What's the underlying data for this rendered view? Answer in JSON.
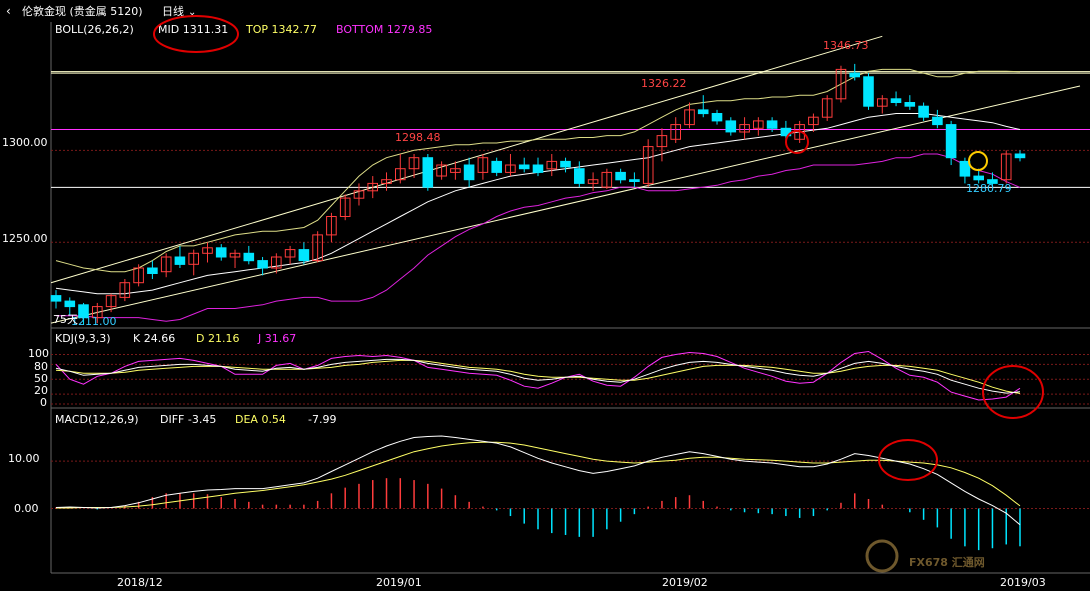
{
  "header": {
    "title": "伦敦金现 (贵金属 5120)",
    "period": "日线"
  },
  "boll": {
    "label": "BOLL(26,26,2)",
    "mid": "MID 1311.31",
    "top": "TOP 1342.77",
    "bottom": "BOTTOM 1279.85"
  },
  "kdj": {
    "label": "KDJ(9,3,3)",
    "k": "K 24.66",
    "d": "D 21.16",
    "j": "J 31.67"
  },
  "macd": {
    "label": "MACD(12,26,9)",
    "diff": "DIFF -3.45",
    "dea": "DEA 0.54",
    "macd": "-7.99"
  },
  "price_axis": [
    "1300.00",
    "1250.00"
  ],
  "kdj_axis": [
    "100",
    "80",
    "50",
    "20",
    "0"
  ],
  "macd_axis": [
    "10.00",
    "0.00"
  ],
  "date_axis": [
    "2018/12",
    "2019/01",
    "2019/02",
    "2019/03"
  ],
  "annotations": {
    "hi1": "1298.48",
    "hi2": "1326.22",
    "hi3": "1346.73",
    "lo1": "1280.79",
    "lo_start": "1211.00",
    "vol_tag": "75天"
  },
  "watermark": "FX678 汇通网",
  "colors": {
    "up": "#ff3c3c",
    "down": "#00e5ff",
    "mid": "#ffff99",
    "top": "#ffffcc",
    "bottom": "#ff33ff",
    "annotation": "#ff3333"
  },
  "chart_data": {
    "type": "candlestick",
    "price_ylim": [
      1205,
      1360
    ],
    "candles": [
      [
        1221,
        1224,
        1214,
        1218
      ],
      [
        1218,
        1220,
        1210,
        1215
      ],
      [
        1216,
        1217,
        1205,
        1209
      ],
      [
        1209,
        1217,
        1206,
        1215
      ],
      [
        1215,
        1222,
        1212,
        1221
      ],
      [
        1220,
        1230,
        1218,
        1228
      ],
      [
        1228,
        1238,
        1226,
        1236
      ],
      [
        1236,
        1240,
        1230,
        1233
      ],
      [
        1234,
        1244,
        1231,
        1242
      ],
      [
        1242,
        1248,
        1236,
        1238
      ],
      [
        1238,
        1246,
        1232,
        1244
      ],
      [
        1244,
        1250,
        1239,
        1247
      ],
      [
        1247,
        1249,
        1240,
        1242
      ],
      [
        1242,
        1246,
        1236,
        1244
      ],
      [
        1244,
        1248,
        1238,
        1240
      ],
      [
        1240,
        1242,
        1232,
        1236
      ],
      [
        1236,
        1244,
        1233,
        1242
      ],
      [
        1242,
        1248,
        1238,
        1246
      ],
      [
        1246,
        1250,
        1238,
        1240
      ],
      [
        1240,
        1256,
        1239,
        1254
      ],
      [
        1254,
        1266,
        1250,
        1264
      ],
      [
        1264,
        1276,
        1262,
        1274
      ],
      [
        1274,
        1282,
        1270,
        1278
      ],
      [
        1278,
        1286,
        1274,
        1282
      ],
      [
        1282,
        1288,
        1278,
        1284
      ],
      [
        1284,
        1298,
        1282,
        1290
      ],
      [
        1290,
        1298,
        1285,
        1296
      ],
      [
        1296,
        1298,
        1278,
        1280
      ],
      [
        1286,
        1294,
        1284,
        1292
      ],
      [
        1288,
        1294,
        1284,
        1290
      ],
      [
        1292,
        1296,
        1280,
        1284
      ],
      [
        1288,
        1298,
        1284,
        1296
      ],
      [
        1294,
        1296,
        1286,
        1288
      ],
      [
        1288,
        1298,
        1286,
        1292
      ],
      [
        1292,
        1296,
        1288,
        1290
      ],
      [
        1292,
        1296,
        1286,
        1288
      ],
      [
        1290,
        1298,
        1286,
        1294
      ],
      [
        1294,
        1296,
        1288,
        1291
      ],
      [
        1290,
        1294,
        1280,
        1282
      ],
      [
        1282,
        1288,
        1278,
        1284
      ],
      [
        1280,
        1290,
        1279,
        1288
      ],
      [
        1288,
        1290,
        1282,
        1284
      ],
      [
        1284,
        1288,
        1280,
        1283
      ],
      [
        1282,
        1306,
        1280,
        1302
      ],
      [
        1302,
        1312,
        1294,
        1308
      ],
      [
        1306,
        1318,
        1304,
        1314
      ],
      [
        1314,
        1326,
        1312,
        1322
      ],
      [
        1322,
        1330,
        1318,
        1320
      ],
      [
        1320,
        1322,
        1314,
        1316
      ],
      [
        1316,
        1318,
        1308,
        1310
      ],
      [
        1310,
        1318,
        1306,
        1314
      ],
      [
        1312,
        1318,
        1308,
        1316
      ],
      [
        1316,
        1318,
        1310,
        1312
      ],
      [
        1312,
        1316,
        1304,
        1308
      ],
      [
        1306,
        1316,
        1304,
        1314
      ],
      [
        1314,
        1320,
        1310,
        1318
      ],
      [
        1318,
        1330,
        1316,
        1328
      ],
      [
        1328,
        1346,
        1326,
        1344
      ],
      [
        1342,
        1347,
        1338,
        1340
      ],
      [
        1340,
        1342,
        1322,
        1324
      ],
      [
        1324,
        1330,
        1320,
        1328
      ],
      [
        1328,
        1332,
        1324,
        1326
      ],
      [
        1326,
        1330,
        1322,
        1324
      ],
      [
        1324,
        1326,
        1316,
        1318
      ],
      [
        1318,
        1322,
        1312,
        1314
      ],
      [
        1314,
        1316,
        1292,
        1296
      ],
      [
        1294,
        1296,
        1282,
        1286
      ],
      [
        1286,
        1290,
        1282,
        1284
      ],
      [
        1284,
        1288,
        1280,
        1282
      ],
      [
        1284,
        1300,
        1282,
        1298
      ],
      [
        1298,
        1300,
        1294,
        1296
      ]
    ],
    "boll_mid": [
      1225,
      1224,
      1223,
      1222,
      1222,
      1222,
      1223,
      1224,
      1226,
      1228,
      1230,
      1232,
      1233,
      1234,
      1235,
      1236,
      1237,
      1238,
      1239,
      1241,
      1244,
      1248,
      1252,
      1256,
      1260,
      1264,
      1268,
      1272,
      1275,
      1278,
      1280,
      1282,
      1284,
      1286,
      1287,
      1288,
      1289,
      1290,
      1291,
      1292,
      1293,
      1294,
      1295,
      1296,
      1298,
      1300,
      1302,
      1303,
      1304,
      1305,
      1306,
      1307,
      1308,
      1309,
      1310,
      1311,
      1312,
      1314,
      1316,
      1318,
      1319,
      1320,
      1320,
      1320,
      1319,
      1318,
      1317,
      1316,
      1315,
      1313,
      1311.31
    ],
    "boll_top": [
      1240,
      1238,
      1236,
      1235,
      1234,
      1234,
      1236,
      1240,
      1245,
      1248,
      1248,
      1250,
      1252,
      1254,
      1255,
      1256,
      1256,
      1257,
      1258,
      1262,
      1270,
      1278,
      1286,
      1292,
      1296,
      1298,
      1300,
      1301,
      1302,
      1303,
      1303,
      1304,
      1304,
      1305,
      1305,
      1306,
      1306,
      1306,
      1307,
      1307,
      1308,
      1308,
      1310,
      1314,
      1318,
      1322,
      1325,
      1326,
      1327,
      1327,
      1328,
      1328,
      1329,
      1329,
      1330,
      1330,
      1332,
      1336,
      1340,
      1343,
      1344,
      1344,
      1344,
      1342,
      1340,
      1340,
      1342,
      1343,
      1343,
      1343,
      1342.77
    ],
    "boll_bottom": [
      1210,
      1210,
      1210,
      1209,
      1209,
      1209,
      1209,
      1208,
      1207,
      1208,
      1211,
      1214,
      1214,
      1214,
      1215,
      1216,
      1218,
      1219,
      1220,
      1220,
      1218,
      1218,
      1218,
      1220,
      1224,
      1230,
      1236,
      1243,
      1248,
      1253,
      1257,
      1260,
      1264,
      1267,
      1269,
      1270,
      1272,
      1274,
      1275,
      1277,
      1278,
      1280,
      1280,
      1278,
      1278,
      1278,
      1279,
      1280,
      1281,
      1283,
      1284,
      1286,
      1287,
      1289,
      1290,
      1292,
      1292,
      1292,
      1292,
      1293,
      1294,
      1296,
      1296,
      1298,
      1298,
      1296,
      1292,
      1289,
      1287,
      1283,
      1279.85
    ],
    "kdj_k": [
      72,
      66,
      58,
      60,
      62,
      68,
      74,
      76,
      78,
      80,
      80,
      78,
      76,
      70,
      68,
      66,
      72,
      74,
      70,
      74,
      80,
      84,
      86,
      88,
      90,
      90,
      88,
      82,
      78,
      74,
      70,
      68,
      66,
      60,
      52,
      48,
      50,
      54,
      56,
      50,
      46,
      44,
      50,
      60,
      70,
      78,
      84,
      86,
      84,
      80,
      76,
      72,
      68,
      62,
      58,
      56,
      62,
      72,
      82,
      86,
      82,
      76,
      70,
      66,
      60,
      48,
      40,
      32,
      26,
      22,
      24.66
    ],
    "kdj_d": [
      68,
      66,
      62,
      62,
      62,
      64,
      68,
      70,
      72,
      74,
      76,
      76,
      76,
      74,
      72,
      70,
      70,
      70,
      70,
      72,
      74,
      78,
      80,
      84,
      86,
      88,
      88,
      86,
      82,
      78,
      74,
      72,
      70,
      66,
      60,
      56,
      54,
      54,
      54,
      52,
      50,
      48,
      48,
      52,
      58,
      64,
      70,
      76,
      78,
      78,
      78,
      76,
      74,
      70,
      66,
      62,
      62,
      66,
      72,
      76,
      78,
      78,
      76,
      72,
      68,
      60,
      52,
      44,
      34,
      26,
      21.16
    ],
    "kdj_j": [
      80,
      50,
      40,
      56,
      62,
      76,
      86,
      88,
      90,
      92,
      88,
      82,
      76,
      60,
      60,
      60,
      78,
      82,
      70,
      78,
      92,
      96,
      98,
      96,
      98,
      94,
      88,
      74,
      70,
      66,
      62,
      60,
      58,
      48,
      36,
      32,
      42,
      54,
      60,
      46,
      38,
      36,
      54,
      76,
      94,
      100,
      104,
      102,
      96,
      84,
      72,
      64,
      56,
      46,
      42,
      44,
      62,
      84,
      102,
      106,
      90,
      72,
      58,
      54,
      44,
      24,
      16,
      8,
      10,
      14,
      31.67
    ],
    "macd_diff": [
      0.2,
      0.3,
      0.2,
      0.1,
      0.2,
      0.6,
      1.2,
      2.0,
      2.8,
      3.2,
      3.6,
      3.9,
      4.0,
      4.2,
      4.2,
      4.2,
      4.6,
      5.0,
      5.4,
      6.4,
      7.8,
      9.2,
      10.6,
      12.0,
      13.2,
      14.2,
      15.0,
      15.2,
      15.3,
      15.0,
      14.6,
      14.2,
      13.8,
      13.0,
      11.8,
      10.6,
      9.6,
      8.8,
      8.0,
      7.4,
      7.8,
      8.4,
      9.0,
      10.0,
      10.8,
      11.4,
      12.0,
      11.6,
      11.0,
      10.4,
      10.0,
      9.8,
      9.6,
      9.2,
      8.8,
      8.8,
      9.4,
      10.4,
      11.6,
      11.2,
      10.6,
      10.0,
      9.4,
      8.4,
      7.2,
      5.4,
      3.6,
      2.0,
      0.6,
      -1.0,
      -3.45
    ],
    "macd_dea": [
      0.1,
      0.1,
      0.2,
      0.2,
      0.2,
      0.3,
      0.5,
      0.8,
      1.2,
      1.6,
      2.0,
      2.4,
      2.8,
      3.2,
      3.5,
      3.8,
      4.2,
      4.6,
      5.0,
      5.6,
      6.2,
      7.0,
      8.0,
      9.0,
      10.0,
      11.0,
      12.0,
      12.6,
      13.2,
      13.6,
      13.9,
      14.0,
      14.0,
      13.8,
      13.4,
      12.8,
      12.2,
      11.6,
      11.0,
      10.4,
      10.0,
      9.8,
      9.6,
      9.8,
      10.0,
      10.2,
      10.6,
      10.8,
      10.8,
      10.6,
      10.4,
      10.3,
      10.2,
      10.0,
      9.8,
      9.6,
      9.6,
      9.8,
      10.0,
      10.2,
      10.2,
      10.0,
      9.8,
      9.6,
      9.2,
      8.6,
      7.6,
      6.4,
      4.8,
      2.8,
      0.54
    ],
    "macd_hist": [
      0.2,
      0.4,
      0.0,
      -0.2,
      0.0,
      0.6,
      1.4,
      2.4,
      3.2,
      3.2,
      3.2,
      3.0,
      2.4,
      2.0,
      1.4,
      0.8,
      0.8,
      0.8,
      0.8,
      1.6,
      3.2,
      4.4,
      5.2,
      6.0,
      6.4,
      6.4,
      6.0,
      5.2,
      4.2,
      2.8,
      1.4,
      0.4,
      -0.4,
      -1.6,
      -3.2,
      -4.4,
      -5.2,
      -5.6,
      -6.0,
      -6.0,
      -4.4,
      -2.8,
      -1.2,
      0.4,
      1.6,
      2.4,
      2.8,
      1.6,
      0.4,
      -0.4,
      -0.8,
      -1.0,
      -1.2,
      -1.6,
      -2.0,
      -1.6,
      -0.4,
      1.2,
      3.2,
      2.0,
      0.8,
      0.0,
      -0.8,
      -2.4,
      -4.0,
      -6.4,
      -8.0,
      -8.8,
      -8.4,
      -7.6,
      -7.99
    ],
    "kdj_ylim": [
      0,
      105
    ],
    "macd_ylim": [
      -13,
      17
    ]
  }
}
